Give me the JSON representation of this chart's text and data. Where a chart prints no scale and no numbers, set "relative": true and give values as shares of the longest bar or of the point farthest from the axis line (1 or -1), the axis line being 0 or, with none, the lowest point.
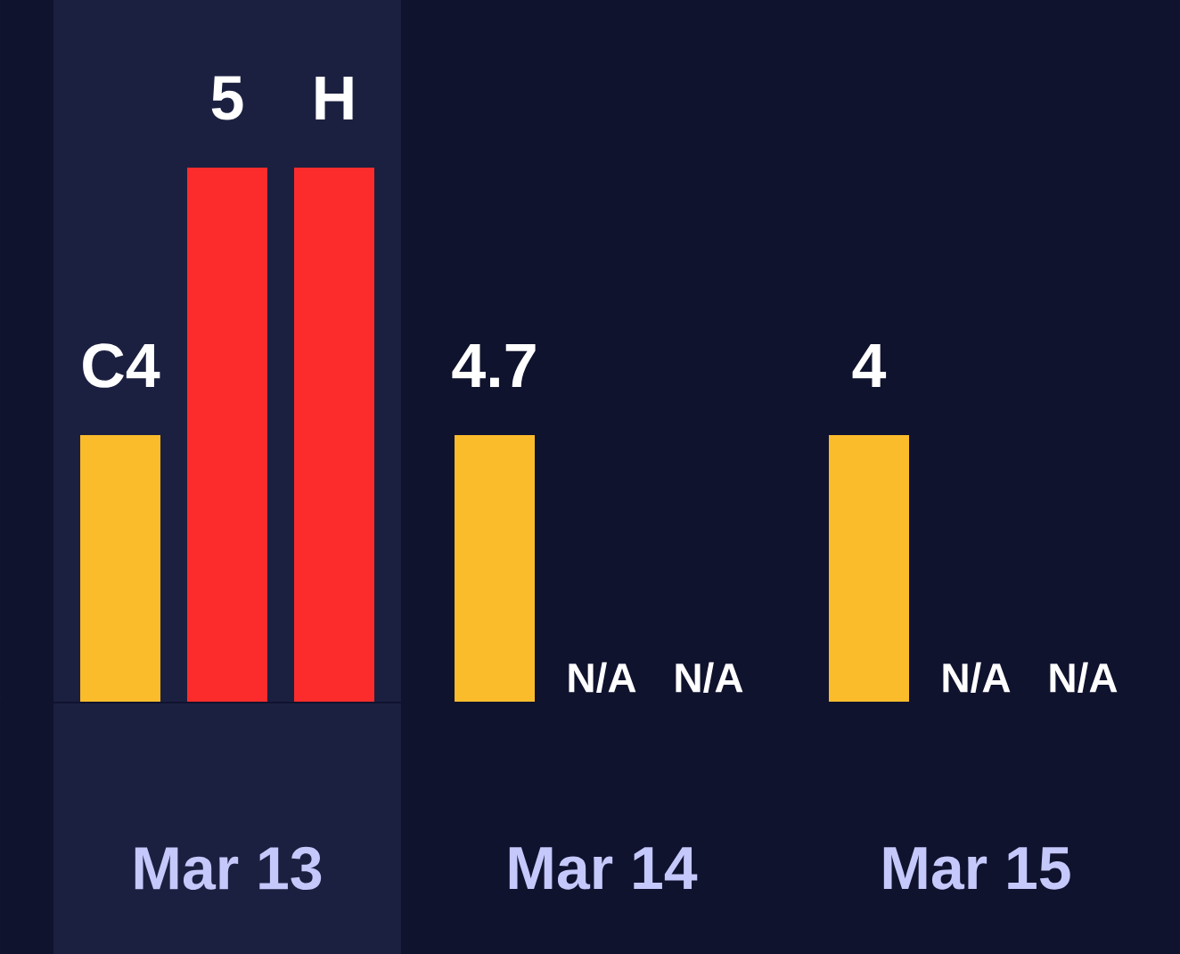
{
  "chart_data": {
    "type": "bar",
    "relative": true,
    "categories": [
      "Mar 13",
      "Mar 14",
      "Mar 15"
    ],
    "series": [
      {
        "color": "#fbbc2c",
        "values": [
          0.5,
          0.5,
          0.5
        ]
      },
      {
        "color": "#fc2c2c",
        "values": [
          1,
          null,
          null
        ]
      },
      {
        "color": "#fc2c2c",
        "values": [
          1,
          null,
          null
        ]
      }
    ],
    "annotations": [
      "C4",
      "5",
      "H",
      "4.7",
      "N/A",
      "N/A",
      "4",
      "N/A",
      "N/A"
    ],
    "bands": [
      {
        "axis": "x",
        "from": "Mar 13",
        "to": "Mar 13",
        "color": "#1c2040"
      }
    ]
  }
}
